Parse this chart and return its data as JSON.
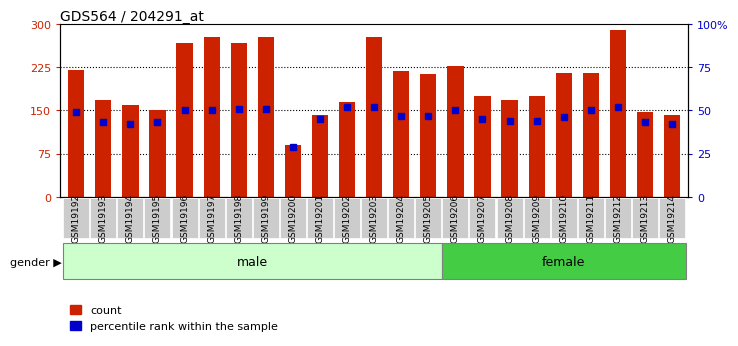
{
  "title": "GDS564 / 204291_at",
  "samples": [
    "GSM19192",
    "GSM19193",
    "GSM19194",
    "GSM19195",
    "GSM19196",
    "GSM19197",
    "GSM19198",
    "GSM19199",
    "GSM19200",
    "GSM19201",
    "GSM19202",
    "GSM19203",
    "GSM19204",
    "GSM19205",
    "GSM19206",
    "GSM19207",
    "GSM19208",
    "GSM19209",
    "GSM19210",
    "GSM19211",
    "GSM19212",
    "GSM19213",
    "GSM19214"
  ],
  "counts": [
    220,
    168,
    160,
    150,
    268,
    278,
    268,
    278,
    90,
    142,
    165,
    278,
    218,
    213,
    228,
    175,
    168,
    175,
    215,
    215,
    290,
    148,
    142
  ],
  "percentile_ranks": [
    49,
    43,
    42,
    43,
    50,
    50,
    51,
    51,
    29,
    45,
    52,
    52,
    47,
    47,
    50,
    45,
    44,
    44,
    46,
    50,
    52,
    43,
    42
  ],
  "gender": [
    "male",
    "male",
    "male",
    "male",
    "male",
    "male",
    "male",
    "male",
    "male",
    "male",
    "male",
    "male",
    "male",
    "male",
    "female",
    "female",
    "female",
    "female",
    "female",
    "female",
    "female",
    "female",
    "female"
  ],
  "male_color": "#ccffcc",
  "female_color": "#44cc44",
  "bar_color": "#cc2200",
  "dot_color": "#0000cc",
  "tick_bg_color": "#cccccc",
  "ylim_left": [
    0,
    300
  ],
  "ylim_right": [
    0,
    100
  ],
  "yticks_left": [
    0,
    75,
    150,
    225,
    300
  ],
  "yticks_right": [
    0,
    25,
    50,
    75,
    100
  ],
  "yticklabels_right": [
    "0",
    "25",
    "50",
    "75",
    "100%"
  ],
  "legend_count": "count",
  "legend_percentile": "percentile rank within the sample",
  "gender_label": "gender"
}
